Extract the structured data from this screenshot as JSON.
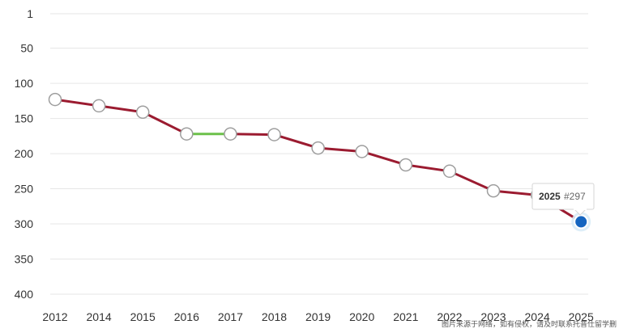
{
  "chart_data": {
    "type": "line",
    "x": [
      "2012",
      "2014",
      "2015",
      "2016",
      "2017",
      "2018",
      "2019",
      "2020",
      "2021",
      "2022",
      "2023",
      "2024",
      "2025"
    ],
    "series": [
      {
        "values": [
          123,
          132,
          141,
          172,
          172,
          173,
          192,
          197,
          216,
          225,
          253,
          259,
          297
        ]
      }
    ],
    "yticks": [
      "1",
      "50",
      "100",
      "150",
      "200",
      "250",
      "300",
      "350",
      "400"
    ],
    "ylim": [
      1,
      400
    ],
    "y_inverted": true,
    "grid": true,
    "colors": {
      "line": "#9b1b30",
      "line_unchanged": "#6cc04a",
      "marker_fill": "#ffffff",
      "marker_stroke": "#9e9e9e",
      "highlight": "#1565c0"
    },
    "tooltip": {
      "year": "2025",
      "rank": "#297"
    }
  },
  "watermark": "图片来源于网络，如有侵权，请及时联系托普仕留学删除"
}
